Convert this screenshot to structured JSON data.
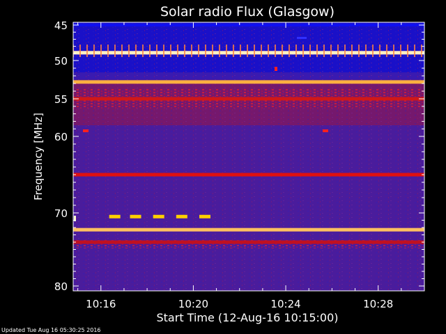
{
  "chart_data": {
    "type": "heatmap",
    "title": "Solar radio Flux (Glasgow)",
    "xlabel": "Start Time (12-Aug-16 10:15:00)",
    "ylabel": "Frequency [MHz]",
    "x_tick_labels": [
      "10:16",
      "10:20",
      "10:24",
      "10:28"
    ],
    "x_ticks_minutes": [
      16,
      20,
      24,
      28
    ],
    "xlim_minutes": [
      14.8,
      30.0
    ],
    "y_tick_labels": [
      "45",
      "50",
      "55",
      "60",
      "70",
      "80"
    ],
    "y_ticks": [
      45,
      50,
      55,
      60,
      70,
      80
    ],
    "ylim": [
      44.7,
      80.2
    ],
    "y_scale": "nonlinear (per tick labels)",
    "colormap": "blue-purple-red-yellow-white",
    "background_color": "#000000",
    "base_color": "#4a1c9c",
    "emission_bands": [
      {
        "freq_mhz": 45.0,
        "intensity": "low",
        "color": "#1010f0"
      },
      {
        "freq_mhz": 48.9,
        "intensity": "very high",
        "color": "#fff0c0"
      },
      {
        "freq_mhz": 52.8,
        "intensity": "very high",
        "color": "#ffb040"
      },
      {
        "freq_mhz": 55.0,
        "intensity": "medium",
        "color": "#d01818"
      },
      {
        "freq_mhz": 65.0,
        "intensity": "medium",
        "color": "#e01010"
      },
      {
        "freq_mhz": 72.3,
        "intensity": "very high",
        "color": "#ffc060"
      },
      {
        "freq_mhz": 74.0,
        "intensity": "medium",
        "color": "#c01020"
      }
    ],
    "bursts": [
      {
        "time_minutes": 16.6,
        "freq_mhz": 70.5,
        "color": "#ffd000"
      },
      {
        "time_minutes": 17.5,
        "freq_mhz": 70.5,
        "color": "#ffd000"
      },
      {
        "time_minutes": 18.5,
        "freq_mhz": 70.5,
        "color": "#ffd000"
      },
      {
        "time_minutes": 19.5,
        "freq_mhz": 70.5,
        "color": "#ffd000"
      },
      {
        "time_minutes": 20.5,
        "freq_mhz": 70.5,
        "color": "#ffd000"
      }
    ]
  },
  "footer": {
    "updated_text": "Updated Tue Aug 16 05:30:25 2016"
  }
}
